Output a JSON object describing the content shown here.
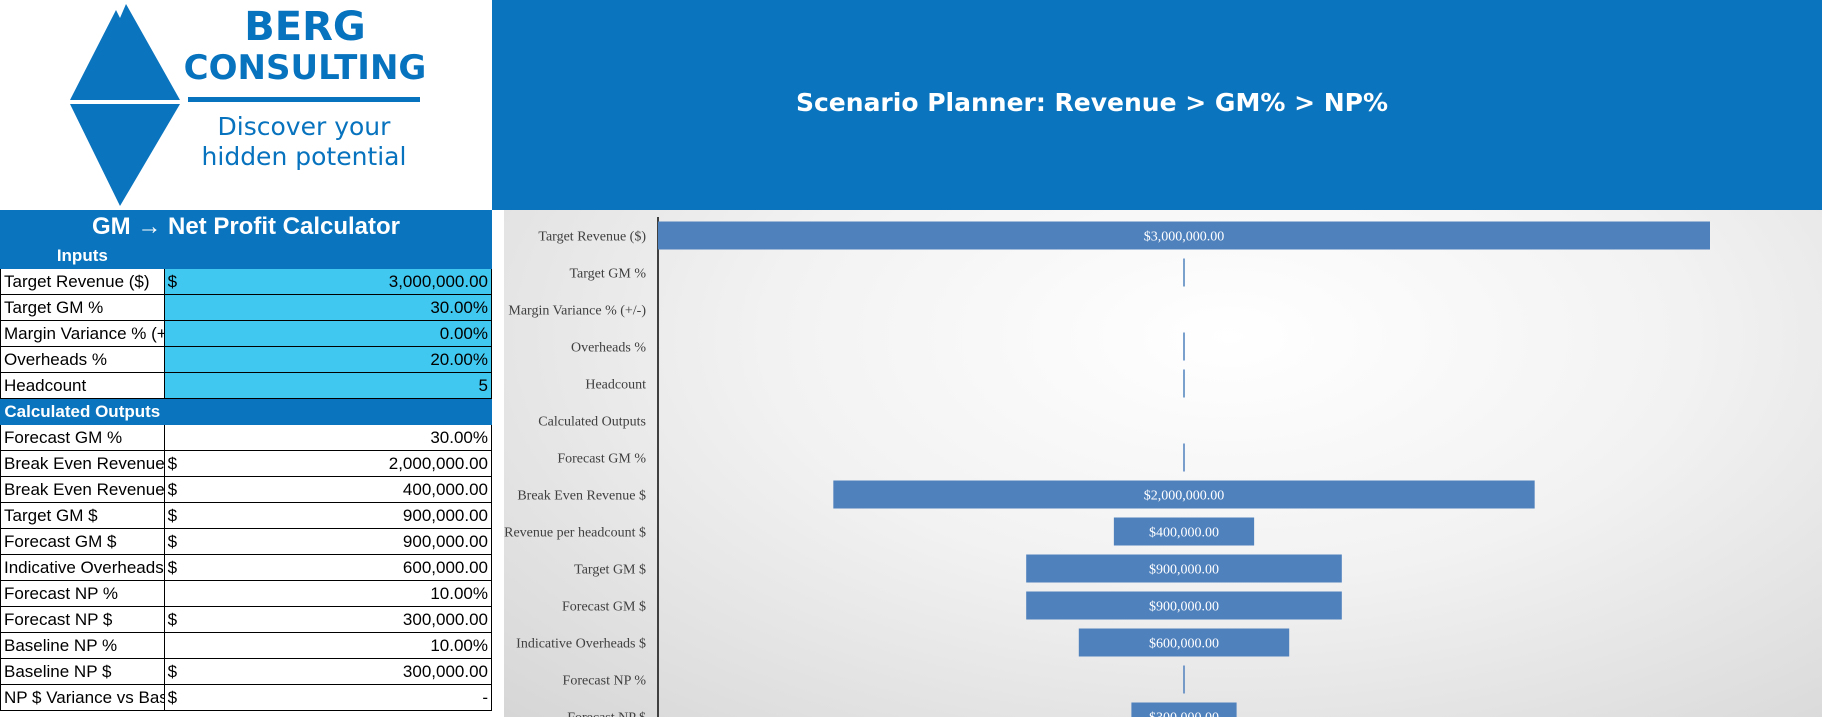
{
  "logo": {
    "brand_line1": "BERG",
    "brand_line2": "CONSULTING",
    "tagline_line1": "Discover your",
    "tagline_line2": "hidden potential"
  },
  "banner": {
    "title": "Scenario Planner: Revenue > GM% > NP%"
  },
  "calculator": {
    "title": "GM → Net Profit Calculator",
    "inputs_header": "Inputs",
    "outputs_header": "Calculated Outputs",
    "inputs": [
      {
        "label": "Target Revenue ($)",
        "currency": "$",
        "value": "3,000,000.00"
      },
      {
        "label": "Target GM %",
        "currency": "",
        "value": "30.00%"
      },
      {
        "label": "Margin Variance % (+/-)",
        "currency": "",
        "value": "0.00%"
      },
      {
        "label": " Overheads %",
        "currency": "",
        "value": "20.00%"
      },
      {
        "label": "Headcount",
        "currency": "",
        "value": "5"
      }
    ],
    "outputs": [
      {
        "label": "Forecast GM %",
        "currency": "",
        "value": "30.00%"
      },
      {
        "label": "Break Even Revenue $",
        "currency": "$",
        "value": "2,000,000.00"
      },
      {
        "label": "Break Even Revenue per headcount $",
        "currency": "$",
        "value": "400,000.00"
      },
      {
        "label": "Target GM $",
        "currency": "$",
        "value": "900,000.00"
      },
      {
        "label": "Forecast GM $",
        "currency": "$",
        "value": "900,000.00"
      },
      {
        "label": "Indicative Overheads $",
        "currency": "$",
        "value": "600,000.00"
      },
      {
        "label": "Forecast NP %",
        "currency": "",
        "value": "10.00%"
      },
      {
        "label": "Forecast NP $",
        "currency": "$",
        "value": "300,000.00"
      },
      {
        "label": "Baseline NP %",
        "currency": "",
        "value": "10.00%"
      },
      {
        "label": "Baseline NP $",
        "currency": "$",
        "value": "300,000.00"
      },
      {
        "label": "NP $ Variance vs Baseline",
        "currency": "$",
        "value": "-"
      }
    ]
  },
  "chart_data": {
    "type": "bar",
    "orientation": "horizontal-funnel",
    "bar_color": "#4f81bd",
    "categories": [
      "Target Revenue ($)",
      "Target GM %",
      "Margin Variance % (+/-)",
      "Overheads %",
      "Headcount",
      "Calculated Outputs",
      "Forecast GM %",
      "Break Even Revenue $",
      "Break Even Revenue per headcount $",
      "Target GM $",
      "Forecast GM $",
      "Indicative Overheads $",
      "Forecast NP %",
      "Forecast NP $"
    ],
    "values": [
      3000000,
      0.3,
      0,
      0.2,
      5,
      0,
      0.3,
      2000000,
      400000,
      900000,
      900000,
      600000,
      0.1,
      300000
    ],
    "data_labels": [
      "$3,000,000.00",
      "",
      "",
      "",
      "",
      "",
      "",
      "$2,000,000.00",
      "$400,000.00",
      "$900,000.00",
      "$900,000.00",
      "$600,000.00",
      "",
      "$300,000.00"
    ],
    "xlim": [
      0,
      3000000
    ]
  }
}
